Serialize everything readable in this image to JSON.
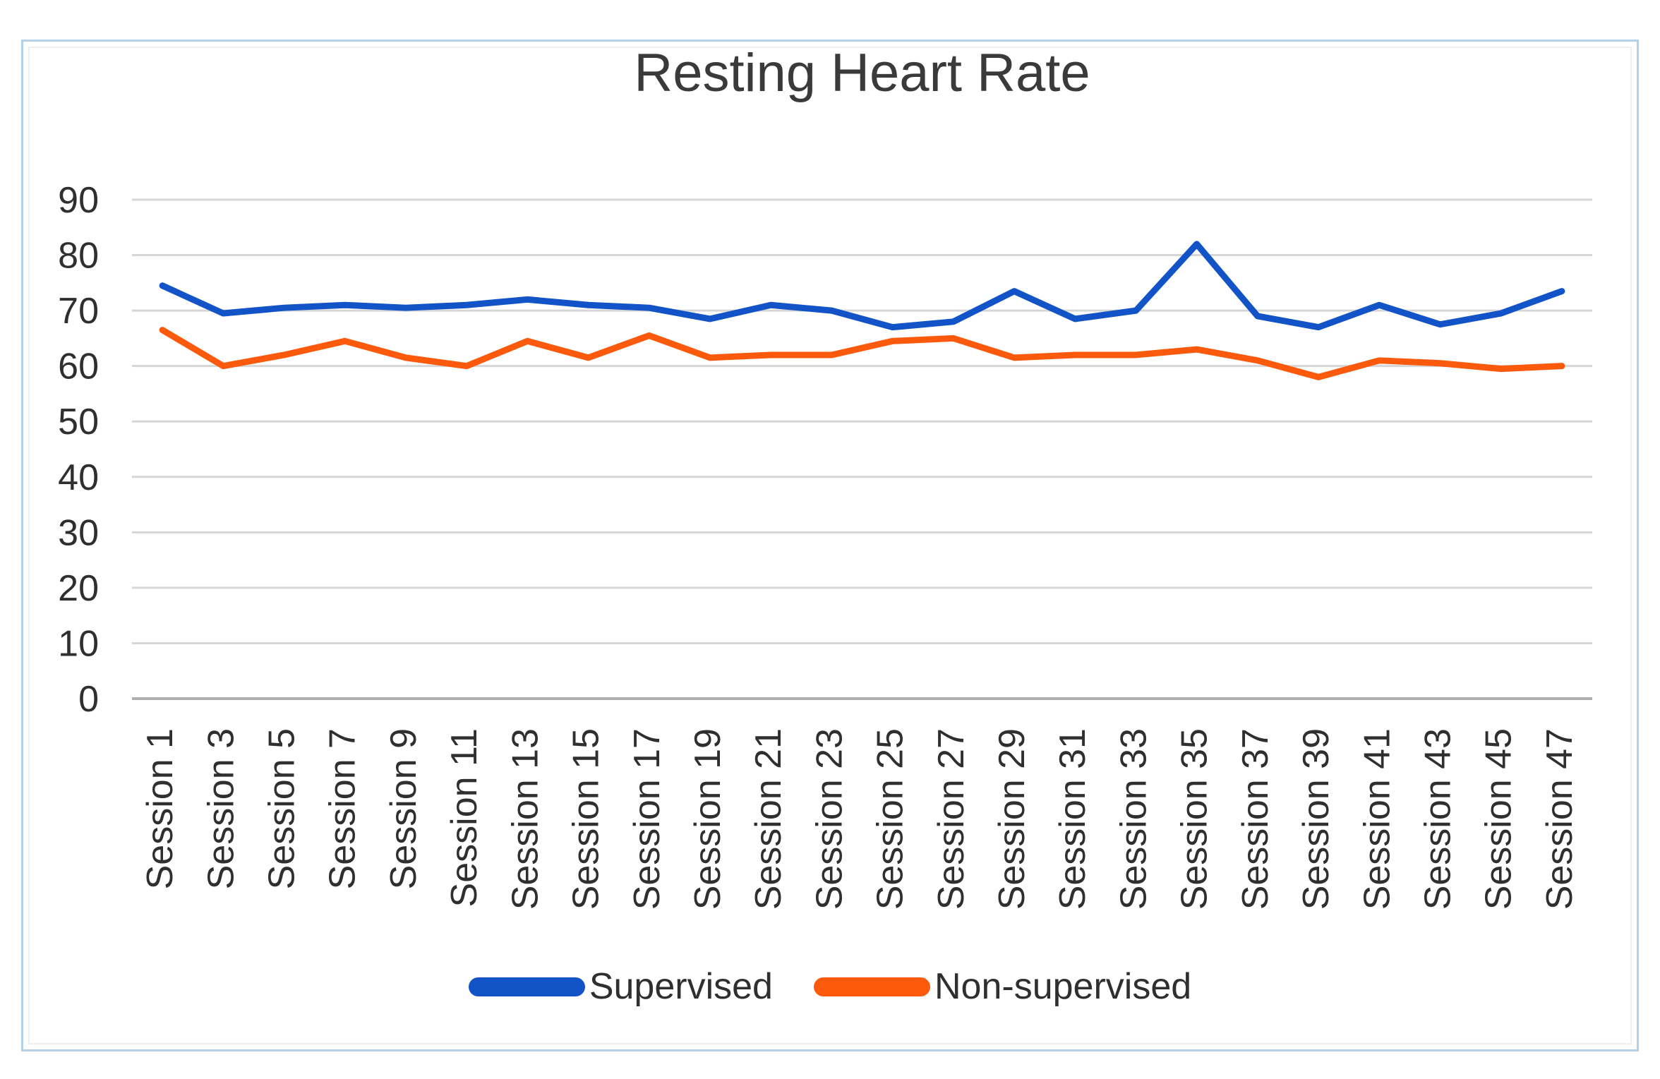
{
  "title": "Resting Heart Rate",
  "chart_data": {
    "type": "line",
    "title": "Resting Heart Rate",
    "categories": [
      "Session 1",
      "Session 3",
      "Session 5",
      "Session 7",
      "Session 9",
      "Session 11",
      "Session 13",
      "Session 15",
      "Session 17",
      "Session 19",
      "Session 21",
      "Session 23",
      "Session 25",
      "Session 27",
      "Session 29",
      "Session 31",
      "Session 33",
      "Session 35",
      "Session 37",
      "Session 39",
      "Session 41",
      "Session 43",
      "Session 45",
      "Session 47"
    ],
    "series": [
      {
        "name": "Supervised",
        "color": "#1254c7",
        "values": [
          74.5,
          69.5,
          70.5,
          71,
          70.5,
          71,
          72,
          71,
          70.5,
          68.5,
          71,
          70,
          67,
          68,
          73.5,
          68.5,
          70,
          82,
          69,
          67,
          71,
          67.5,
          69.5,
          73.5
        ]
      },
      {
        "name": "Non-supervised",
        "color": "#fb5a0d",
        "values": [
          66.5,
          60,
          62,
          64.5,
          61.5,
          60,
          64.5,
          61.5,
          65.5,
          61.5,
          62,
          62,
          64.5,
          65,
          61.5,
          62,
          62,
          63,
          61,
          58,
          61,
          60.5,
          59.5,
          60
        ]
      }
    ],
    "ylim": [
      0,
      90
    ],
    "yticks": [
      0,
      10,
      20,
      30,
      40,
      50,
      60,
      70,
      80,
      90
    ],
    "xlabel": "",
    "ylabel": "",
    "grid": true,
    "legend_position": "bottom",
    "x_label_rotation": -90
  },
  "colors": {
    "gridline": "#d6d6d6",
    "axis_line": "#aeaeae",
    "tick_text": "#2f2f2f",
    "title_text": "#3a3a3a",
    "outer_border": "#b5d1e8"
  }
}
